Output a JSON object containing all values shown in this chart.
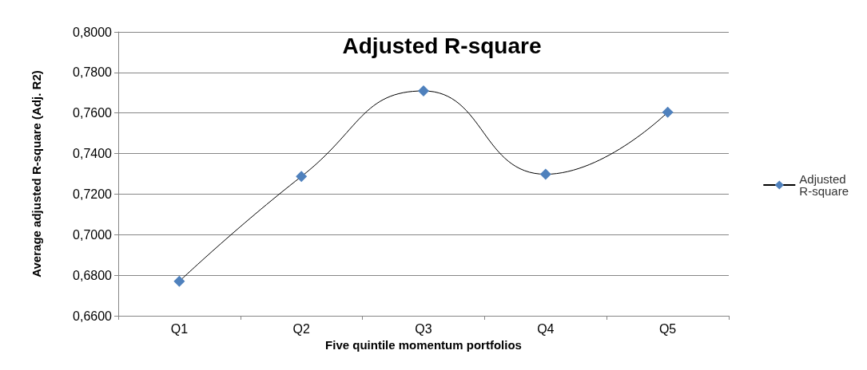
{
  "chart_data": {
    "type": "line",
    "title": "Adjusted R-square",
    "xlabel": "Five quintile momentum portfolios",
    "ylabel": "Average adjusted R-square (Adj. R2)",
    "categories": [
      "Q1",
      "Q2",
      "Q3",
      "Q4",
      "Q5"
    ],
    "series": [
      {
        "name": "Adjusted R-square",
        "color": "#4f81bd",
        "values": [
          0.677,
          0.7287,
          0.7709,
          0.7298,
          0.7604
        ]
      }
    ],
    "ylim": [
      0.66,
      0.8
    ],
    "yticks": [
      {
        "value": 0.66,
        "label": "0,6600"
      },
      {
        "value": 0.68,
        "label": "0,6800"
      },
      {
        "value": 0.7,
        "label": "0,7000"
      },
      {
        "value": 0.72,
        "label": "0,7200"
      },
      {
        "value": 0.74,
        "label": "0,7400"
      },
      {
        "value": 0.76,
        "label": "0,7600"
      },
      {
        "value": 0.78,
        "label": "0,7800"
      },
      {
        "value": 0.8,
        "label": "0,8000"
      }
    ],
    "grid": "y",
    "legend": "right",
    "marker": "diamond",
    "line_style": "solid"
  }
}
